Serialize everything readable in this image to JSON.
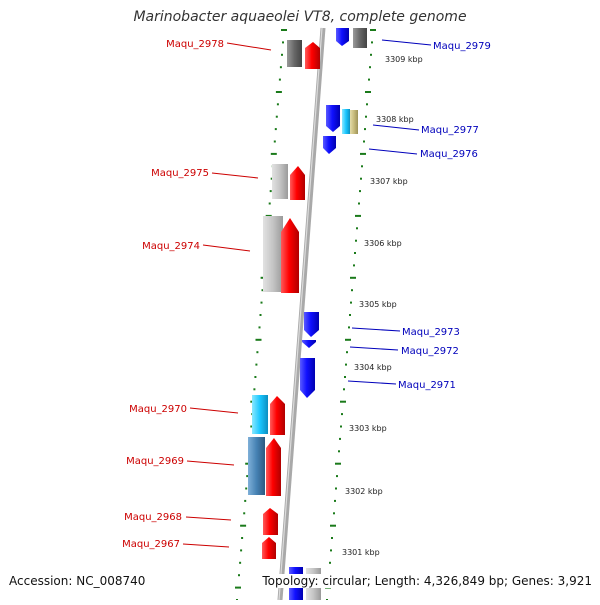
{
  "title": "Marinobacter aquaeolei VT8, complete genome",
  "accession_text": "Accession: NC_008740",
  "summary_text": "Topology: circular; Length: 4,326,849 bp; Genes: 3,921",
  "colors": {
    "forward_label": "#cc0000",
    "reverse_label": "#0000bb",
    "tick": "#1a7a1a",
    "backbone": "#999999"
  },
  "kbp_markers": [
    "3309 kbp",
    "3308 kbp",
    "3307 kbp",
    "3306 kbp",
    "3305 kbp",
    "3304 kbp",
    "3303 kbp",
    "3302 kbp",
    "3301 kbp"
  ],
  "genes_left": [
    "Maqu_2978",
    "Maqu_2975",
    "Maqu_2974",
    "Maqu_2970",
    "Maqu_2969",
    "Maqu_2968",
    "Maqu_2967"
  ],
  "genes_right": [
    "Maqu_2979",
    "Maqu_2977",
    "Maqu_2976",
    "Maqu_2973",
    "Maqu_2972",
    "Maqu_2971"
  ]
}
